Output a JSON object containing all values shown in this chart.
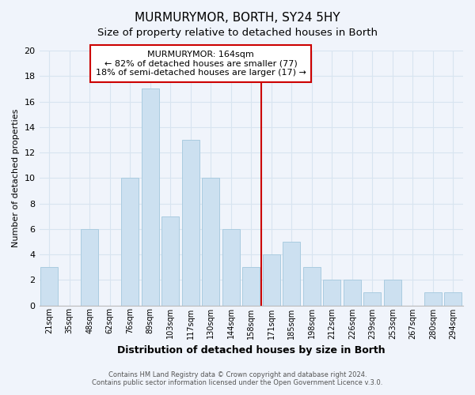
{
  "title": "MURMURYMOR, BORTH, SY24 5HY",
  "subtitle": "Size of property relative to detached houses in Borth",
  "xlabel": "Distribution of detached houses by size in Borth",
  "ylabel": "Number of detached properties",
  "categories": [
    "21sqm",
    "35sqm",
    "48sqm",
    "62sqm",
    "76sqm",
    "89sqm",
    "103sqm",
    "117sqm",
    "130sqm",
    "144sqm",
    "158sqm",
    "171sqm",
    "185sqm",
    "198sqm",
    "212sqm",
    "226sqm",
    "239sqm",
    "253sqm",
    "267sqm",
    "280sqm",
    "294sqm"
  ],
  "values": [
    3,
    0,
    6,
    0,
    10,
    17,
    7,
    13,
    10,
    6,
    3,
    4,
    5,
    3,
    2,
    2,
    1,
    2,
    0,
    1,
    1
  ],
  "bar_color": "#cce0f0",
  "bar_edge_color": "#aacce0",
  "ylim": [
    0,
    20
  ],
  "yticks": [
    0,
    2,
    4,
    6,
    8,
    10,
    12,
    14,
    16,
    18,
    20
  ],
  "vline_color": "#cc0000",
  "annotation_title": "MURMURYMOR: 164sqm",
  "annotation_line1": "← 82% of detached houses are smaller (77)",
  "annotation_line2": "18% of semi-detached houses are larger (17) →",
  "annotation_box_color": "#ffffff",
  "annotation_box_edge": "#cc0000",
  "footer1": "Contains HM Land Registry data © Crown copyright and database right 2024.",
  "footer2": "Contains public sector information licensed under the Open Government Licence v.3.0.",
  "background_color": "#f0f4fb",
  "grid_color": "#d8e4f0",
  "title_fontsize": 11,
  "subtitle_fontsize": 9.5
}
